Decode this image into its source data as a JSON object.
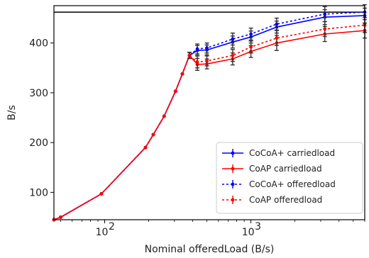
{
  "chart_data": {
    "type": "line",
    "title": "",
    "xlabel": "Nominal offeredLoad (B/s)",
    "ylabel": "B/s",
    "x_scale": "log",
    "xlim": [
      45,
      6000
    ],
    "ylim": [
      45,
      475
    ],
    "x_tick_labels": [
      "10",
      "10"
    ],
    "x_tick_exponents": [
      "2",
      "3"
    ],
    "x_tick_values": [
      100,
      1000
    ],
    "y_ticks": [
      100,
      200,
      300,
      400
    ],
    "reference_line": {
      "y": 462,
      "color": "#000000"
    },
    "legend_position": "lower-right",
    "x": [
      45,
      50,
      95,
      190,
      215,
      255,
      305,
      340,
      380,
      430,
      500,
      750,
      1000,
      1500,
      3200,
      6000
    ],
    "series": [
      {
        "name": "CoCoA+ carriedload",
        "color": "#0000ff",
        "style": "solid",
        "values": [
          45,
          50,
          97,
          190,
          216,
          253,
          303,
          338,
          375,
          385,
          386,
          402,
          412,
          432,
          452,
          455
        ],
        "errors": [
          0,
          0,
          0,
          0,
          0,
          0,
          0,
          0,
          6,
          10,
          10,
          12,
          12,
          12,
          15,
          15
        ]
      },
      {
        "name": "CoAP carriedload",
        "color": "#ff0000",
        "style": "solid",
        "values": [
          45,
          50,
          97,
          190,
          216,
          253,
          303,
          338,
          375,
          357,
          358,
          368,
          383,
          400,
          418,
          425
        ],
        "errors": [
          0,
          0,
          0,
          0,
          0,
          0,
          0,
          0,
          6,
          12,
          10,
          12,
          12,
          15,
          15,
          15
        ]
      },
      {
        "name": "CoCoA+ offeredload",
        "color": "#0000ff",
        "style": "dotted",
        "values": [
          45,
          50,
          97,
          190,
          216,
          253,
          303,
          338,
          375,
          388,
          390,
          408,
          418,
          438,
          458,
          462
        ],
        "errors": [
          0,
          0,
          0,
          0,
          0,
          0,
          0,
          0,
          6,
          10,
          10,
          12,
          12,
          12,
          15,
          15
        ]
      },
      {
        "name": "CoAP offeredload",
        "color": "#ff0000",
        "style": "dotted",
        "values": [
          45,
          50,
          97,
          190,
          216,
          253,
          303,
          338,
          375,
          362,
          364,
          375,
          392,
          410,
          428,
          436
        ],
        "errors": [
          0,
          0,
          0,
          0,
          0,
          0,
          0,
          0,
          6,
          12,
          10,
          12,
          12,
          15,
          15,
          15
        ]
      }
    ]
  }
}
